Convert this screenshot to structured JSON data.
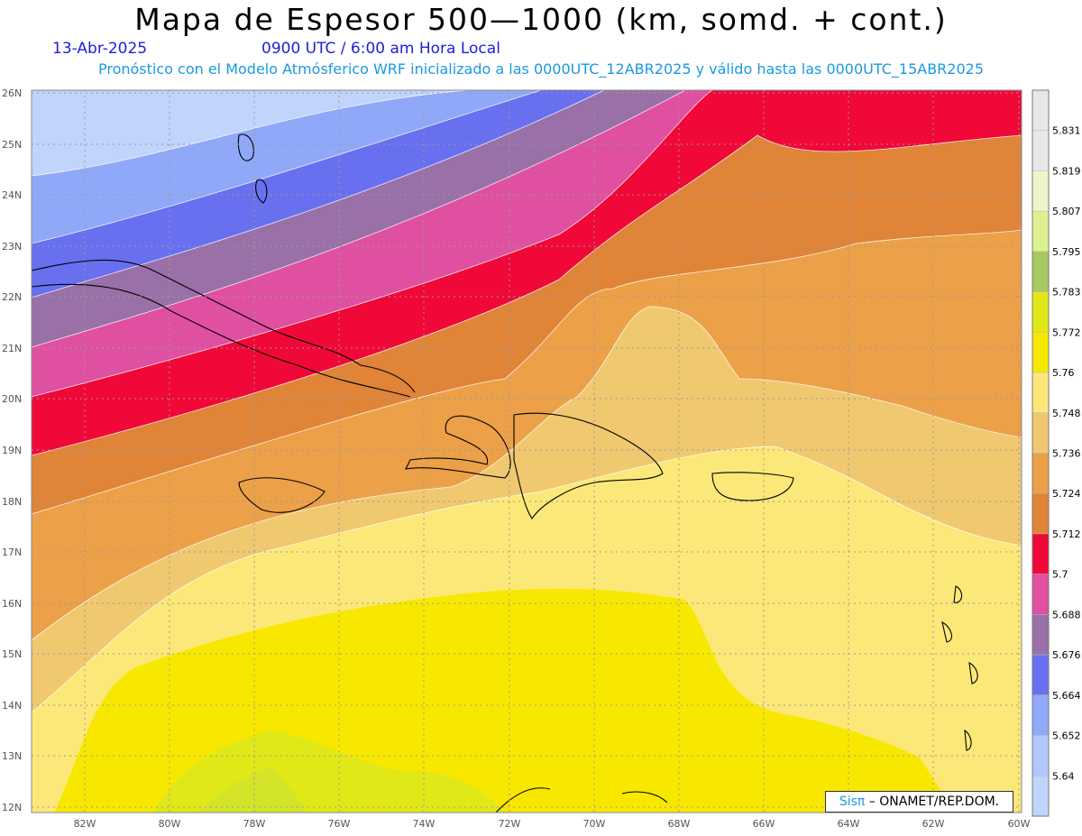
{
  "title": "Mapa de Espesor 500—1000 (km, somd. + cont.)",
  "date": "13-Abr-2025",
  "time": "0900 UTC / 6:00 am Hora Local",
  "description": "Pronóstico con el Modelo Atmósferico WRF inicializado a las 0000UTC_12ABR2025 y válido hasta las  0000UTC_15ABR2025",
  "credit": {
    "brand": "Sisπ",
    "rest": " – ONAMET/REP.DOM."
  },
  "lat_labels": [
    "26N",
    "25N",
    "24N",
    "23N",
    "22N",
    "21N",
    "20N",
    "19N",
    "18N",
    "17N",
    "16N",
    "15N",
    "14N",
    "13N",
    "12N"
  ],
  "lon_labels": [
    "82W",
    "80W",
    "78W",
    "76W",
    "74W",
    "72W",
    "70W",
    "68W",
    "66W",
    "64W",
    "62W",
    "60W"
  ],
  "colorbar": {
    "levels": [
      "5.831",
      "5.819",
      "5.807",
      "5.795",
      "5.783",
      "5.772",
      "5.76",
      "5.748",
      "5.736",
      "5.724",
      "5.712",
      "5.7",
      "5.688",
      "5.676",
      "5.664",
      "5.652",
      "5.64"
    ],
    "colors": [
      "#e8e8e8",
      "#eef5c8",
      "#dff090",
      "#a8c860",
      "#e0e818",
      "#f8e800",
      "#fce878",
      "#f0c870",
      "#eca048",
      "#e08438",
      "#f00838",
      "#e050a0",
      "#9a70a8",
      "#6870f0",
      "#90a8f8",
      "#b0c8fc",
      "#c0d4fc"
    ]
  }
}
